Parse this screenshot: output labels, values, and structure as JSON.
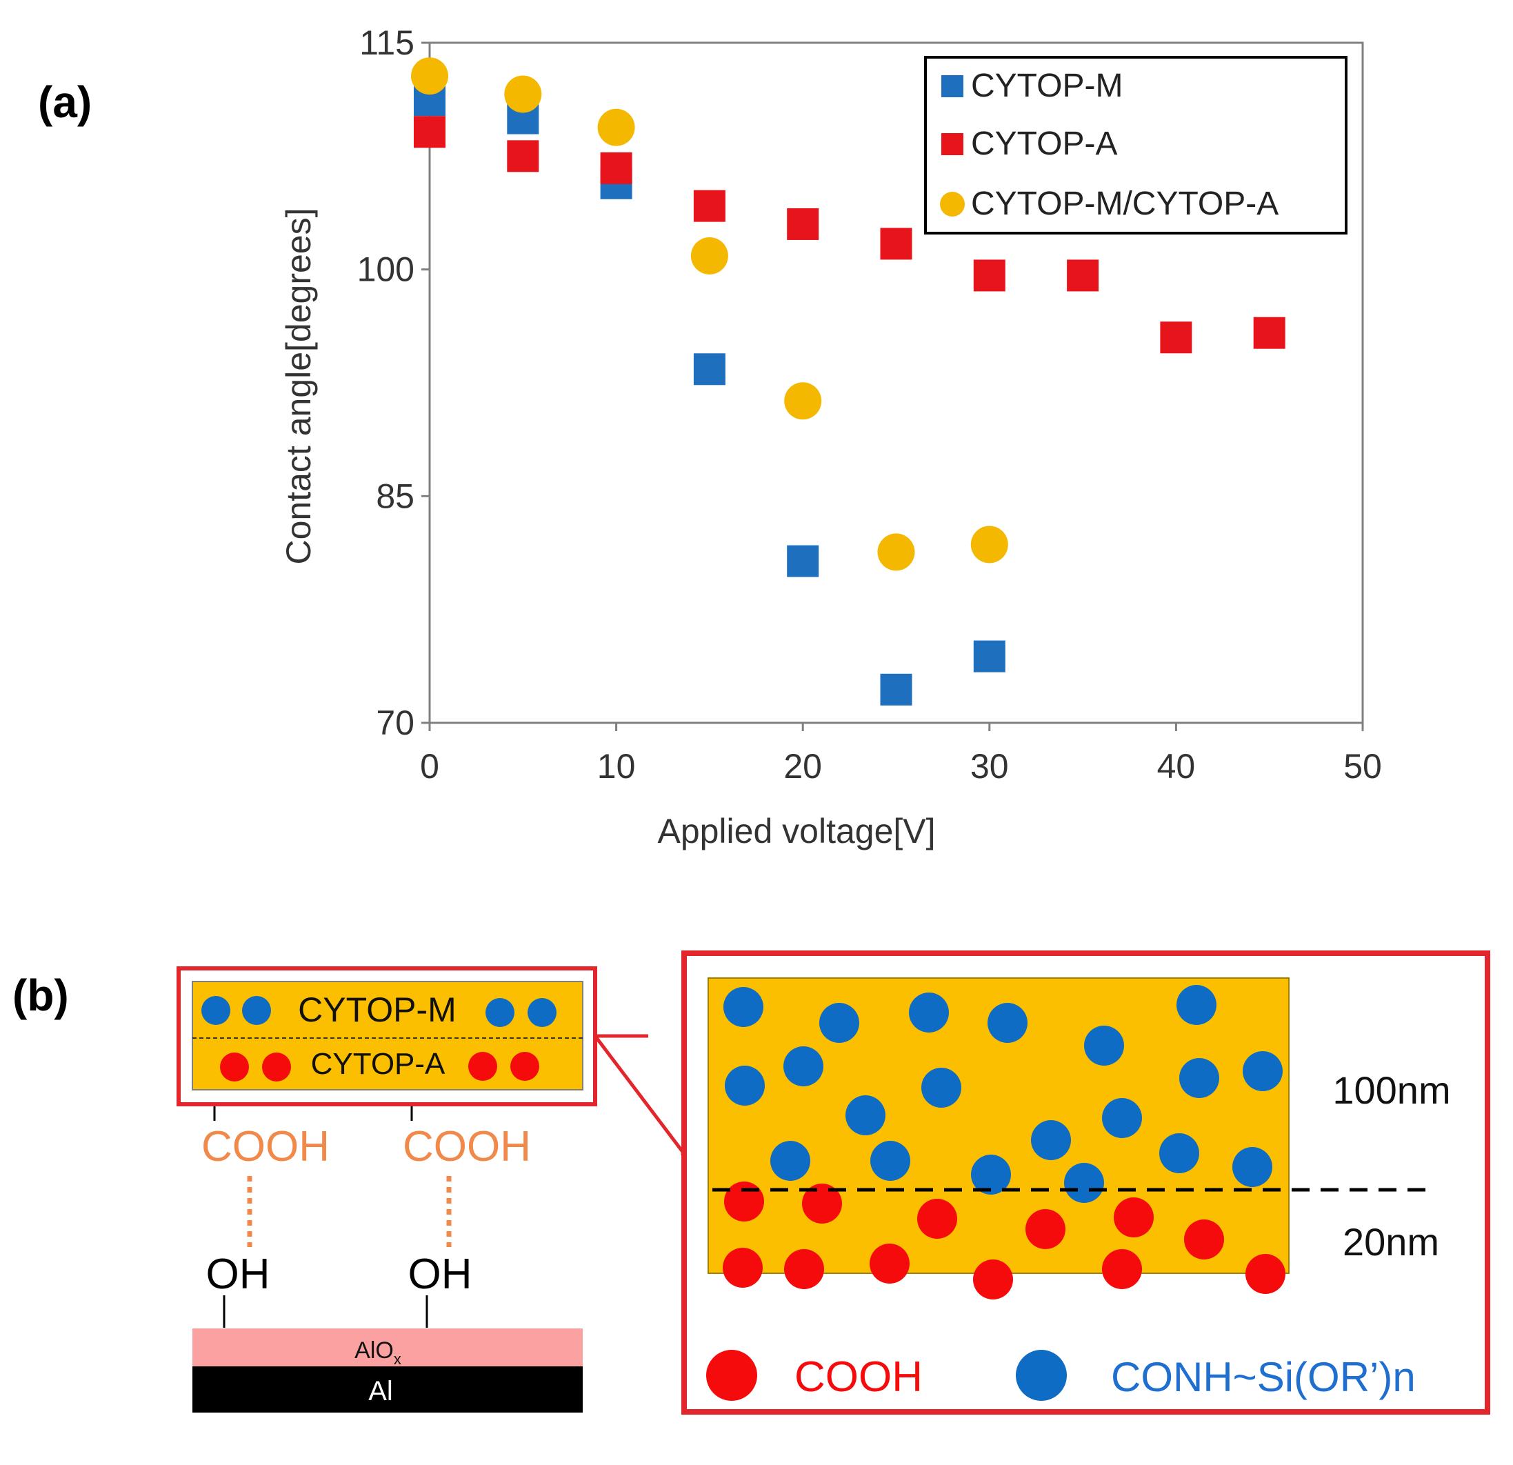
{
  "chart_data": {
    "type": "scatter",
    "panel_label": "(a)",
    "xlabel": "Applied voltage[V]",
    "ylabel": "Contact angle[degrees]",
    "xlim": [
      0,
      50
    ],
    "ylim": [
      70,
      115
    ],
    "xticks": [
      0,
      10,
      20,
      30,
      40,
      50
    ],
    "yticks": [
      70,
      85,
      100,
      115
    ],
    "grid": false,
    "legend_position": "top-right",
    "series": [
      {
        "name": "CYTOP-M",
        "marker": "square",
        "color": "#1f6fbf",
        "x": [
          0,
          5,
          10,
          15,
          20,
          25,
          30
        ],
        "y": [
          111.2,
          110.0,
          105.7,
          93.4,
          80.7,
          72.2,
          74.4
        ]
      },
      {
        "name": "CYTOP-A",
        "marker": "square",
        "color": "#e8141b",
        "x": [
          0,
          5,
          10,
          15,
          20,
          25,
          30,
          35,
          40,
          45
        ],
        "y": [
          109.1,
          107.5,
          106.7,
          104.2,
          103.0,
          101.7,
          99.6,
          99.6,
          95.5,
          95.8
        ]
      },
      {
        "name": "CYTOP-M/CYTOP-A",
        "marker": "circle",
        "color": "#f5b800",
        "x": [
          0,
          5,
          10,
          15,
          20,
          25,
          30
        ],
        "y": [
          112.8,
          111.6,
          109.4,
          100.9,
          91.3,
          81.3,
          81.8
        ]
      }
    ]
  },
  "schematic": {
    "panel_label": "(b)",
    "layer_top": "CYTOP-M",
    "layer_bottom": "CYTOP-A",
    "acid_group": "COOH",
    "hydroxyl_group": "OH",
    "oxide_main": "AlO",
    "oxide_sub": "x",
    "metal": "Al",
    "thickness_top": "100nm",
    "thickness_bottom": "20nm",
    "legend_acid": "COOH",
    "legend_silane": "CONH~Si(OR’)n",
    "colors": {
      "yellow": "#fbbf00",
      "blue": "#0e6cc4",
      "red": "#f50b0b",
      "frame": "#e3262b",
      "orange": "#f0894a",
      "pink": "#fca1a1",
      "black": "#000000"
    }
  }
}
